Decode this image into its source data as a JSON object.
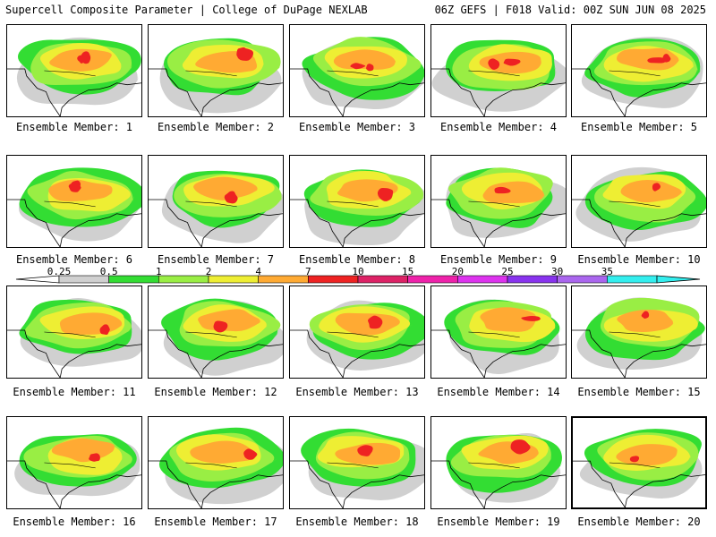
{
  "header": {
    "left": "Supercell Composite Parameter | College of DuPage NEXLAB",
    "right": "06Z GEFS | F018 Valid: 00Z SUN JUN 08 2025"
  },
  "colorbar": {
    "labels": [
      "0.25",
      "0.5",
      "1",
      "2",
      "4",
      "7",
      "10",
      "15",
      "20",
      "25",
      "30",
      "35"
    ],
    "colors": [
      "#d0d0d0",
      "#33dd33",
      "#99ee44",
      "#eeee33",
      "#ffaa33",
      "#ee2222",
      "#dd2266",
      "#ee22aa",
      "#dd33ee",
      "#8833ee",
      "#aa66ee",
      "#33eeee"
    ]
  },
  "members": [
    {
      "caption": "Ensemble Member: 1",
      "selected": false
    },
    {
      "caption": "Ensemble Member: 2",
      "selected": false
    },
    {
      "caption": "Ensemble Member: 3",
      "selected": false
    },
    {
      "caption": "Ensemble Member: 4",
      "selected": false
    },
    {
      "caption": "Ensemble Member: 5",
      "selected": false
    },
    {
      "caption": "Ensemble Member: 6",
      "selected": false
    },
    {
      "caption": "Ensemble Member: 7",
      "selected": false
    },
    {
      "caption": "Ensemble Member: 8",
      "selected": false
    },
    {
      "caption": "Ensemble Member: 9",
      "selected": false
    },
    {
      "caption": "Ensemble Member: 10",
      "selected": false
    },
    {
      "caption": "Ensemble Member: 11",
      "selected": false
    },
    {
      "caption": "Ensemble Member: 12",
      "selected": false
    },
    {
      "caption": "Ensemble Member: 13",
      "selected": false
    },
    {
      "caption": "Ensemble Member: 14",
      "selected": false
    },
    {
      "caption": "Ensemble Member: 15",
      "selected": false
    },
    {
      "caption": "Ensemble Member: 16",
      "selected": false
    },
    {
      "caption": "Ensemble Member: 17",
      "selected": false
    },
    {
      "caption": "Ensemble Member: 18",
      "selected": false
    },
    {
      "caption": "Ensemble Member: 19",
      "selected": false
    },
    {
      "caption": "Ensemble Member: 20",
      "selected": true
    }
  ]
}
